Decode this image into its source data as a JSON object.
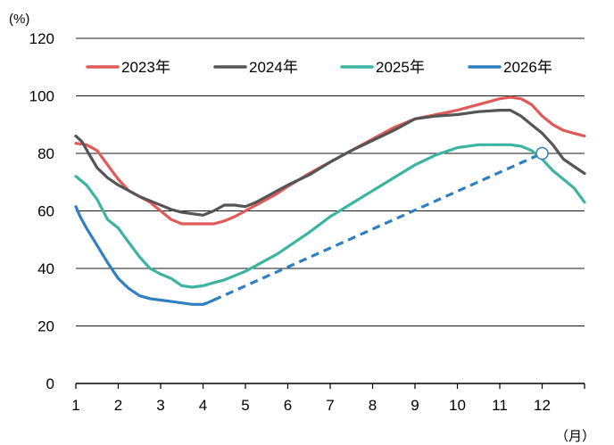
{
  "chart_data": {
    "type": "line",
    "y_unit": "(%)",
    "x_unit": "（月）",
    "ylim": [
      0,
      120
    ],
    "y_ticks": [
      0,
      20,
      40,
      60,
      80,
      100,
      120
    ],
    "xlim": [
      1,
      13
    ],
    "x_ticks": [
      1,
      2,
      3,
      4,
      5,
      6,
      7,
      8,
      9,
      10,
      11,
      12
    ],
    "grid": "horizontal",
    "legend_position": "top-left",
    "series": [
      {
        "name": "2023年",
        "color": "#e05a5a",
        "style": "solid",
        "x": [
          1.0,
          1.25,
          1.5,
          1.75,
          2.0,
          2.25,
          2.5,
          2.75,
          3.0,
          3.25,
          3.5,
          3.75,
          4.0,
          4.25,
          4.5,
          4.75,
          5.0,
          5.25,
          5.5,
          5.75,
          6.0,
          6.5,
          7.0,
          7.5,
          8.0,
          8.5,
          9.0,
          9.5,
          10.0,
          10.5,
          11.0,
          11.25,
          11.5,
          11.75,
          12.0,
          12.25,
          12.5,
          12.75,
          13.0
        ],
        "values": [
          83.5,
          83,
          81,
          76,
          71,
          67,
          65,
          63,
          60,
          57,
          55.5,
          55.5,
          55.5,
          55.5,
          56.5,
          58,
          60,
          62,
          64,
          66,
          68.5,
          73,
          77,
          81,
          85,
          89,
          92,
          93.5,
          95,
          97,
          99,
          99.5,
          99,
          97,
          93,
          90,
          88,
          87,
          86
        ]
      },
      {
        "name": "2024年",
        "color": "#555555",
        "style": "solid",
        "x": [
          1.0,
          1.15,
          1.3,
          1.5,
          1.75,
          2.0,
          2.25,
          2.5,
          2.75,
          3.0,
          3.25,
          3.5,
          3.75,
          4.0,
          4.25,
          4.5,
          4.75,
          5.0,
          5.25,
          5.5,
          5.75,
          6.0,
          6.5,
          7.0,
          7.5,
          8.0,
          8.5,
          9.0,
          9.5,
          10.0,
          10.5,
          11.0,
          11.25,
          11.5,
          11.75,
          12.0,
          12.25,
          12.5,
          12.75,
          13.0
        ],
        "values": [
          86,
          84,
          80,
          75,
          71.5,
          69,
          67,
          65,
          63.5,
          62,
          60.5,
          59.5,
          59,
          58.5,
          60,
          62,
          62,
          61.5,
          63,
          65,
          67,
          69,
          72.5,
          77,
          81,
          84.5,
          88,
          92,
          93,
          93.5,
          94.5,
          95,
          95,
          93,
          90,
          87,
          83,
          78,
          75.5,
          73
        ]
      },
      {
        "name": "2025年",
        "color": "#3cb4a0",
        "style": "solid",
        "x": [
          1.0,
          1.25,
          1.5,
          1.75,
          2.0,
          2.25,
          2.5,
          2.75,
          3.0,
          3.25,
          3.5,
          3.75,
          4.0,
          4.25,
          4.5,
          4.75,
          5.0,
          5.25,
          5.5,
          5.75,
          6.0,
          6.5,
          7.0,
          7.5,
          8.0,
          8.5,
          9.0,
          9.5,
          10.0,
          10.5,
          11.0,
          11.25,
          11.5,
          11.75,
          12.0,
          12.25,
          12.5,
          12.75,
          13.0
        ],
        "values": [
          72,
          69,
          64,
          57,
          54,
          49,
          44,
          40,
          38,
          36.5,
          34,
          33.5,
          34,
          35,
          36,
          37.5,
          39,
          41,
          43,
          45,
          47.5,
          52.5,
          58,
          62.5,
          67,
          71.5,
          76,
          79.5,
          82,
          83,
          83,
          83,
          82.5,
          81,
          78,
          74,
          71,
          68,
          63
        ]
      },
      {
        "name": "2026年",
        "color": "#2f7fc1",
        "style": "solid",
        "x": [
          1.0,
          1.1,
          1.25,
          1.5,
          1.75,
          2.0,
          2.25,
          2.5,
          2.75,
          3.0,
          3.25,
          3.5,
          3.75,
          4.0,
          4.1,
          4.25
        ],
        "values": [
          61.5,
          58,
          54,
          48,
          42,
          36.5,
          33,
          30.5,
          29.5,
          29,
          28.5,
          28,
          27.5,
          27.5,
          28,
          29
        ]
      },
      {
        "name": "",
        "color": "#2f7fc1",
        "style": "dashed",
        "x": [
          4.25,
          12.0
        ],
        "values": [
          29,
          80
        ]
      }
    ],
    "marker": {
      "x": 12.0,
      "y": 80,
      "shape": "open-circle",
      "color": "#2f7fc1"
    }
  }
}
